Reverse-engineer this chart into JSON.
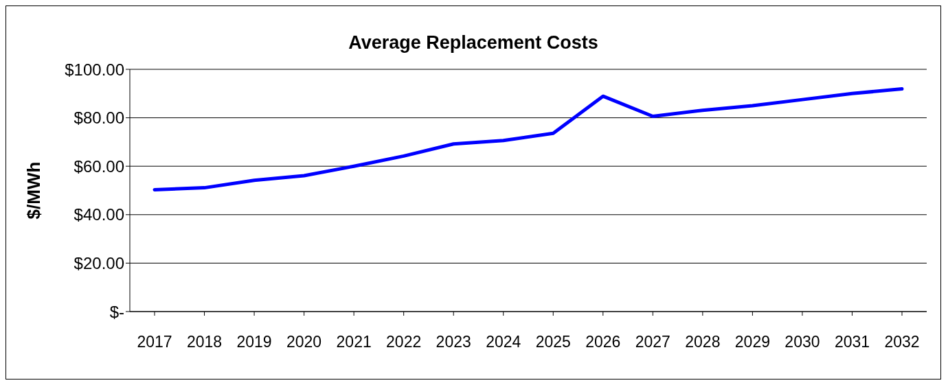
{
  "chart_data": {
    "type": "line",
    "title": "Average Replacement Costs",
    "ylabel": "$/MWh",
    "categories": [
      "2017",
      "2018",
      "2019",
      "2020",
      "2021",
      "2022",
      "2023",
      "2024",
      "2025",
      "2026",
      "2027",
      "2028",
      "2029",
      "2030",
      "2031",
      "2032"
    ],
    "series": [
      {
        "color": "#0000ff",
        "values": [
          50.3,
          51.1,
          54.2,
          56.1,
          60,
          64.2,
          69.2,
          70.6,
          73.6,
          88.9,
          80.6,
          83.1,
          85,
          87.5,
          90,
          91.9
        ]
      }
    ],
    "ylim": [
      0,
      100
    ],
    "yticks": [
      {
        "value": 0,
        "label": "$-"
      },
      {
        "value": 20,
        "label": "$20.00"
      },
      {
        "value": 40,
        "label": "$40.00"
      },
      {
        "value": 60,
        "label": "$60.00"
      },
      {
        "value": 80,
        "label": "$80.00"
      },
      {
        "value": 100,
        "label": "$100.00"
      }
    ],
    "grid": "y",
    "legend": false,
    "marker": "none",
    "line_style": "solid"
  }
}
